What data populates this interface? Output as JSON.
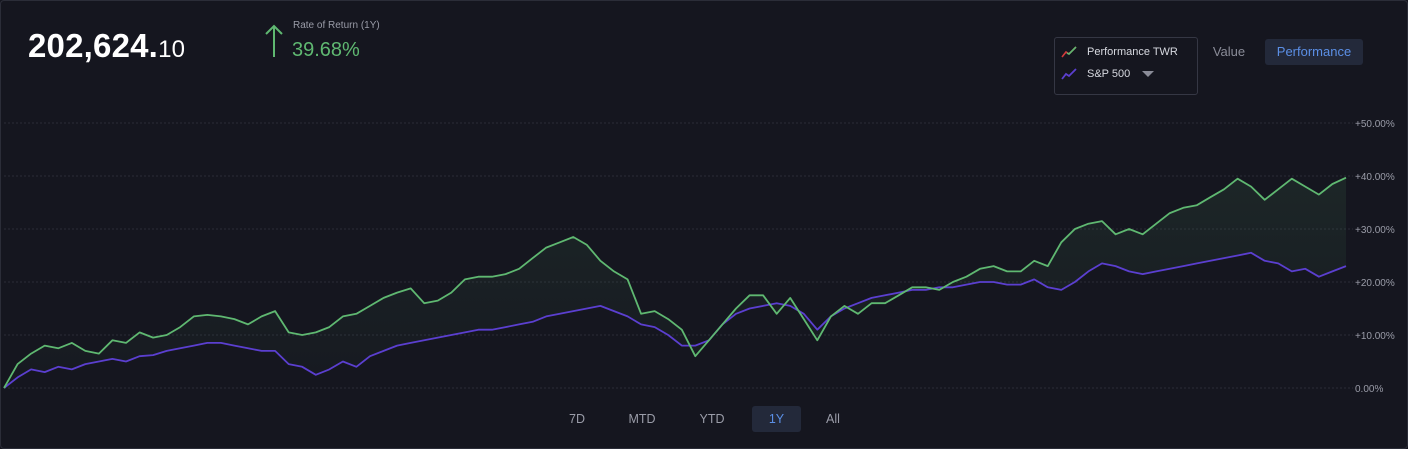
{
  "header": {
    "value_main": "202,624.",
    "value_cents": "10",
    "ror_label": "Rate of Return (1Y)",
    "ror_value": "39.68%"
  },
  "legend": {
    "items": [
      {
        "label": "Performance TWR",
        "icon": "line-chart-icon"
      },
      {
        "label": "S&P 500",
        "icon": "line-chart-icon"
      }
    ]
  },
  "view_modes": {
    "value": "Value",
    "performance": "Performance",
    "selected": "Performance"
  },
  "ranges": {
    "items": [
      "7D",
      "MTD",
      "YTD",
      "1Y",
      "All"
    ],
    "selected": "1Y"
  },
  "colors": {
    "background": "#15161f",
    "twr": "#5fb871",
    "sp500": "#5b3fd0",
    "accent": "#5b8fe6",
    "gain": "#5fb871"
  },
  "chart_data": {
    "type": "line",
    "y_ticks": [
      "0.00%",
      "+10.00%",
      "+20.00%",
      "+30.00%",
      "+40.00%",
      "+50.00%"
    ],
    "ylim": [
      -2,
      50
    ],
    "series": [
      {
        "name": "Performance TWR",
        "color": "#5fb871",
        "values": [
          0,
          4.5,
          6.5,
          8,
          7.5,
          8.5,
          7,
          6.5,
          9,
          8.5,
          10.5,
          9.5,
          10,
          11.5,
          13.5,
          13.8,
          13.5,
          13,
          12,
          13.5,
          14.5,
          10.5,
          10,
          10.5,
          11.5,
          13.5,
          14,
          15.5,
          17,
          18,
          18.8,
          16,
          16.5,
          18,
          20.5,
          21,
          21,
          21.5,
          22.5,
          24.5,
          26.5,
          27.5,
          28.5,
          27,
          24,
          22,
          20.5,
          14,
          14.5,
          13,
          11,
          6,
          9,
          12,
          15,
          17.5,
          17.5,
          14,
          17,
          13,
          9,
          13.5,
          15.5,
          14,
          16,
          16,
          17.5,
          19,
          19,
          18.5,
          20,
          21,
          22.5,
          23,
          22,
          22,
          24,
          23,
          27.5,
          30,
          31,
          31.5,
          29,
          30,
          29,
          31,
          33,
          34,
          34.5,
          36,
          37.5,
          39.5,
          38,
          35.5,
          37.5,
          39.5,
          38,
          36.5,
          38.5,
          39.68
        ]
      },
      {
        "name": "S&P 500",
        "color": "#5b3fd0",
        "values": [
          0,
          2,
          3.5,
          3,
          4,
          3.5,
          4.5,
          5,
          5.5,
          5,
          6,
          6.2,
          7,
          7.5,
          8,
          8.5,
          8.5,
          8,
          7.5,
          7,
          7,
          4.5,
          4,
          2.5,
          3.5,
          5,
          4,
          6,
          7,
          8,
          8.5,
          9,
          9.5,
          10,
          10.5,
          11,
          11,
          11.5,
          12,
          12.5,
          13.5,
          14,
          14.5,
          15,
          15.5,
          14.5,
          13.5,
          12,
          11.5,
          10,
          8,
          8,
          9,
          12,
          14,
          15,
          15.5,
          16,
          15.5,
          14,
          11,
          13.5,
          15,
          16,
          17,
          17.5,
          18,
          18.5,
          18.5,
          19,
          19,
          19.5,
          20,
          20,
          19.5,
          19.5,
          20.5,
          19,
          18.5,
          20,
          22,
          23.5,
          23,
          22,
          21.5,
          22,
          22.5,
          23,
          23.5,
          24,
          24.5,
          25,
          25.5,
          24,
          23.5,
          22,
          22.5,
          21,
          22,
          23
        ]
      }
    ]
  }
}
